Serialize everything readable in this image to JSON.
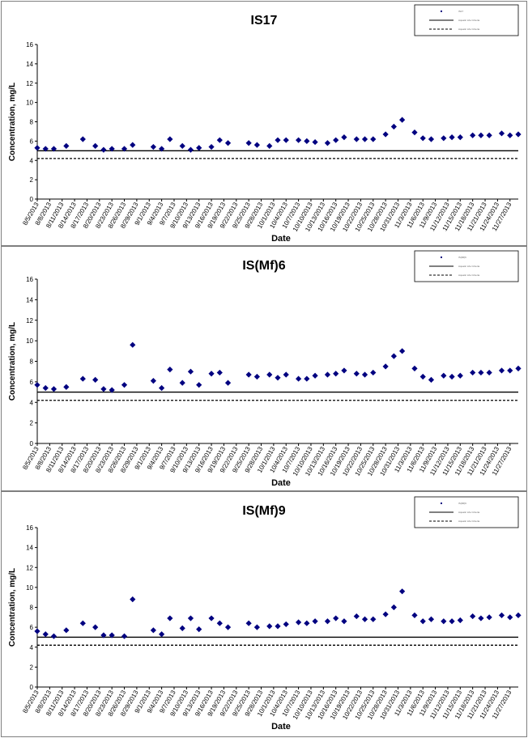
{
  "chart_data": [
    {
      "type": "scatter",
      "title": "IS17",
      "xlabel": "Date",
      "ylabel": "Concentration, mg/L",
      "ylim": [
        0,
        16
      ],
      "yticks": [
        0,
        2,
        4,
        6,
        8,
        10,
        12,
        14,
        16
      ],
      "x_tick_labels": [
        "8/5/2013",
        "8/8/2013",
        "8/11/2013",
        "8/14/2013",
        "8/17/2013",
        "8/20/2013",
        "8/23/2013",
        "8/26/2013",
        "8/29/2013",
        "9/1/2013",
        "9/4/2013",
        "9/7/2013",
        "9/10/2013",
        "9/13/2013",
        "9/16/2013",
        "9/19/2013",
        "9/22/2013",
        "9/25/2013",
        "9/28/2013",
        "10/1/2013",
        "10/4/2013",
        "10/7/2013",
        "10/10/2013",
        "10/13/2013",
        "10/16/2013",
        "10/19/2013",
        "10/22/2013",
        "10/25/2013",
        "10/28/2013",
        "10/31/2013",
        "11/3/2013",
        "11/6/2013",
        "11/9/2013",
        "11/12/2013",
        "11/15/2013",
        "11/18/2013",
        "11/21/2013",
        "11/24/2013",
        "11/27/2013"
      ],
      "grid": false,
      "legend_position": "top-right",
      "legend": [
        {
          "label": "IS17",
          "style": "marker"
        },
        {
          "label": "Aquatic Life Criteria",
          "style": "solid"
        },
        {
          "label": "Aquatic Life Criteria",
          "style": "dashed"
        }
      ],
      "reference_lines": [
        {
          "style": "solid",
          "y": 5.0
        },
        {
          "style": "dashed",
          "y": 4.2
        }
      ],
      "marker_color": "#000080",
      "series": [
        {
          "name": "IS17",
          "points": [
            [
              "8/5/2013",
              5.3
            ],
            [
              "8/7/2013",
              5.2
            ],
            [
              "8/9/2013",
              5.2
            ],
            [
              "8/12/2013",
              5.5
            ],
            [
              "8/16/2013",
              6.2
            ],
            [
              "8/19/2013",
              5.5
            ],
            [
              "8/21/2013",
              5.1
            ],
            [
              "8/23/2013",
              5.2
            ],
            [
              "8/26/2013",
              5.2
            ],
            [
              "8/28/2013",
              5.6
            ],
            [
              "9/2/2013",
              5.4
            ],
            [
              "9/4/2013",
              5.2
            ],
            [
              "9/6/2013",
              6.2
            ],
            [
              "9/9/2013",
              5.5
            ],
            [
              "9/11/2013",
              5.1
            ],
            [
              "9/13/2013",
              5.3
            ],
            [
              "9/16/2013",
              5.4
            ],
            [
              "9/18/2013",
              6.1
            ],
            [
              "9/20/2013",
              5.8
            ],
            [
              "9/25/2013",
              5.8
            ],
            [
              "9/27/2013",
              5.6
            ],
            [
              "9/30/2013",
              5.5
            ],
            [
              "10/2/2013",
              6.1
            ],
            [
              "10/4/2013",
              6.1
            ],
            [
              "10/7/2013",
              6.1
            ],
            [
              "10/9/2013",
              6.0
            ],
            [
              "10/11/2013",
              5.9
            ],
            [
              "10/14/2013",
              5.8
            ],
            [
              "10/16/2013",
              6.1
            ],
            [
              "10/18/2013",
              6.4
            ],
            [
              "10/21/2013",
              6.2
            ],
            [
              "10/23/2013",
              6.2
            ],
            [
              "10/25/2013",
              6.2
            ],
            [
              "10/28/2013",
              6.7
            ],
            [
              "10/30/2013",
              7.5
            ],
            [
              "11/1/2013",
              8.2
            ],
            [
              "11/4/2013",
              6.9
            ],
            [
              "11/6/2013",
              6.3
            ],
            [
              "11/8/2013",
              6.2
            ],
            [
              "11/11/2013",
              6.3
            ],
            [
              "11/13/2013",
              6.4
            ],
            [
              "11/15/2013",
              6.4
            ],
            [
              "11/18/2013",
              6.6
            ],
            [
              "11/20/2013",
              6.6
            ],
            [
              "11/22/2013",
              6.6
            ],
            [
              "11/25/2013",
              6.8
            ],
            [
              "11/27/2013",
              6.6
            ],
            [
              "11/29/2013",
              6.7
            ]
          ]
        }
      ]
    },
    {
      "type": "scatter",
      "title": "IS(Mf)6",
      "xlabel": "Date",
      "ylabel": "Concentration, mg/L",
      "ylim": [
        0,
        16
      ],
      "yticks": [
        0,
        2,
        4,
        6,
        8,
        10,
        12,
        14,
        16
      ],
      "x_tick_labels": [
        "8/5/2013",
        "8/8/2013",
        "8/11/2013",
        "8/14/2013",
        "8/17/2013",
        "8/20/2013",
        "8/23/2013",
        "8/26/2013",
        "8/29/2013",
        "9/1/2013",
        "9/4/2013",
        "9/7/2013",
        "9/10/2013",
        "9/13/2013",
        "9/16/2013",
        "9/19/2013",
        "9/22/2013",
        "9/25/2013",
        "9/28/2013",
        "10/1/2013",
        "10/4/2013",
        "10/7/2013",
        "10/10/2013",
        "10/13/2013",
        "10/16/2013",
        "10/19/2013",
        "10/22/2013",
        "10/25/2013",
        "10/28/2013",
        "10/31/2013",
        "11/3/2013",
        "11/6/2013",
        "11/9/2013",
        "11/12/2013",
        "11/15/2013",
        "11/18/2013",
        "11/21/2013",
        "11/24/2013",
        "11/27/2013"
      ],
      "grid": false,
      "legend_position": "top-right",
      "legend": [
        {
          "label": "IS(Mf)6",
          "style": "marker"
        },
        {
          "label": "Aquatic Life Criteria",
          "style": "solid"
        },
        {
          "label": "Aquatic Life Criteria",
          "style": "dashed"
        }
      ],
      "reference_lines": [
        {
          "style": "solid",
          "y": 5.0
        },
        {
          "style": "dashed",
          "y": 4.2
        }
      ],
      "marker_color": "#000080",
      "series": [
        {
          "name": "IS(Mf)6",
          "points": [
            [
              "8/5/2013",
              5.7
            ],
            [
              "8/7/2013",
              5.4
            ],
            [
              "8/9/2013",
              5.3
            ],
            [
              "8/12/2013",
              5.5
            ],
            [
              "8/16/2013",
              6.3
            ],
            [
              "8/19/2013",
              6.2
            ],
            [
              "8/21/2013",
              5.3
            ],
            [
              "8/23/2013",
              5.2
            ],
            [
              "8/26/2013",
              5.7
            ],
            [
              "8/28/2013",
              9.6
            ],
            [
              "9/2/2013",
              6.1
            ],
            [
              "9/4/2013",
              5.4
            ],
            [
              "9/6/2013",
              7.2
            ],
            [
              "9/9/2013",
              5.9
            ],
            [
              "9/11/2013",
              7.0
            ],
            [
              "9/13/2013",
              5.7
            ],
            [
              "9/16/2013",
              6.8
            ],
            [
              "9/18/2013",
              6.9
            ],
            [
              "9/20/2013",
              5.9
            ],
            [
              "9/25/2013",
              6.7
            ],
            [
              "9/27/2013",
              6.5
            ],
            [
              "9/30/2013",
              6.7
            ],
            [
              "10/2/2013",
              6.4
            ],
            [
              "10/4/2013",
              6.7
            ],
            [
              "10/7/2013",
              6.3
            ],
            [
              "10/9/2013",
              6.3
            ],
            [
              "10/11/2013",
              6.6
            ],
            [
              "10/14/2013",
              6.7
            ],
            [
              "10/16/2013",
              6.8
            ],
            [
              "10/18/2013",
              7.1
            ],
            [
              "10/21/2013",
              6.8
            ],
            [
              "10/23/2013",
              6.7
            ],
            [
              "10/25/2013",
              6.9
            ],
            [
              "10/28/2013",
              7.5
            ],
            [
              "10/30/2013",
              8.5
            ],
            [
              "11/1/2013",
              9.0
            ],
            [
              "11/4/2013",
              7.3
            ],
            [
              "11/6/2013",
              6.5
            ],
            [
              "11/8/2013",
              6.2
            ],
            [
              "11/11/2013",
              6.6
            ],
            [
              "11/13/2013",
              6.5
            ],
            [
              "11/15/2013",
              6.6
            ],
            [
              "11/18/2013",
              6.9
            ],
            [
              "11/20/2013",
              6.9
            ],
            [
              "11/22/2013",
              6.9
            ],
            [
              "11/25/2013",
              7.1
            ],
            [
              "11/27/2013",
              7.1
            ],
            [
              "11/29/2013",
              7.3
            ]
          ]
        }
      ]
    },
    {
      "type": "scatter",
      "title": "IS(Mf)9",
      "xlabel": "Date",
      "ylabel": "Concentration, mg/L",
      "ylim": [
        0,
        16
      ],
      "yticks": [
        0,
        2,
        4,
        6,
        8,
        10,
        12,
        14,
        16
      ],
      "x_tick_labels": [
        "8/5/2013",
        "8/8/2013",
        "8/11/2013",
        "8/14/2013",
        "8/17/2013",
        "8/20/2013",
        "8/23/2013",
        "8/26/2013",
        "8/29/2013",
        "9/1/2013",
        "9/4/2013",
        "9/7/2013",
        "9/10/2013",
        "9/13/2013",
        "9/16/2013",
        "9/19/2013",
        "9/22/2013",
        "9/25/2013",
        "9/28/2013",
        "10/1/2013",
        "10/4/2013",
        "10/7/2013",
        "10/10/2013",
        "10/13/2013",
        "10/16/2013",
        "10/19/2013",
        "10/22/2013",
        "10/25/2013",
        "10/28/2013",
        "10/31/2013",
        "11/3/2013",
        "11/6/2013",
        "11/9/2013",
        "11/12/2013",
        "11/15/2013",
        "11/18/2013",
        "11/21/2013",
        "11/24/2013",
        "11/27/2013"
      ],
      "grid": false,
      "legend_position": "top-right",
      "legend": [
        {
          "label": "IS(Mf)9",
          "style": "marker"
        },
        {
          "label": "Aquatic Life Criteria",
          "style": "solid"
        },
        {
          "label": "Aquatic Life Criteria",
          "style": "dashed"
        }
      ],
      "reference_lines": [
        {
          "style": "solid",
          "y": 5.0
        },
        {
          "style": "dashed",
          "y": 4.2
        }
      ],
      "marker_color": "#000080",
      "series": [
        {
          "name": "IS(Mf)9",
          "points": [
            [
              "8/5/2013",
              5.6
            ],
            [
              "8/7/2013",
              5.3
            ],
            [
              "8/9/2013",
              5.1
            ],
            [
              "8/12/2013",
              5.7
            ],
            [
              "8/16/2013",
              6.4
            ],
            [
              "8/19/2013",
              6.0
            ],
            [
              "8/21/2013",
              5.2
            ],
            [
              "8/23/2013",
              5.2
            ],
            [
              "8/26/2013",
              5.1
            ],
            [
              "8/28/2013",
              8.8
            ],
            [
              "9/2/2013",
              5.7
            ],
            [
              "9/4/2013",
              5.3
            ],
            [
              "9/6/2013",
              6.9
            ],
            [
              "9/9/2013",
              5.9
            ],
            [
              "9/11/2013",
              6.9
            ],
            [
              "9/13/2013",
              5.8
            ],
            [
              "9/16/2013",
              6.9
            ],
            [
              "9/18/2013",
              6.4
            ],
            [
              "9/20/2013",
              6.0
            ],
            [
              "9/25/2013",
              6.4
            ],
            [
              "9/27/2013",
              6.0
            ],
            [
              "9/30/2013",
              6.1
            ],
            [
              "10/2/2013",
              6.1
            ],
            [
              "10/4/2013",
              6.3
            ],
            [
              "10/7/2013",
              6.5
            ],
            [
              "10/9/2013",
              6.4
            ],
            [
              "10/11/2013",
              6.6
            ],
            [
              "10/14/2013",
              6.6
            ],
            [
              "10/16/2013",
              6.9
            ],
            [
              "10/18/2013",
              6.6
            ],
            [
              "10/21/2013",
              7.1
            ],
            [
              "10/23/2013",
              6.8
            ],
            [
              "10/25/2013",
              6.8
            ],
            [
              "10/28/2013",
              7.3
            ],
            [
              "10/30/2013",
              8.0
            ],
            [
              "11/1/2013",
              9.6
            ],
            [
              "11/4/2013",
              7.2
            ],
            [
              "11/6/2013",
              6.6
            ],
            [
              "11/8/2013",
              6.8
            ],
            [
              "11/11/2013",
              6.6
            ],
            [
              "11/13/2013",
              6.6
            ],
            [
              "11/15/2013",
              6.7
            ],
            [
              "11/18/2013",
              7.1
            ],
            [
              "11/20/2013",
              6.9
            ],
            [
              "11/22/2013",
              7.0
            ],
            [
              "11/25/2013",
              7.2
            ],
            [
              "11/27/2013",
              7.0
            ],
            [
              "11/29/2013",
              7.2
            ]
          ]
        }
      ]
    }
  ]
}
